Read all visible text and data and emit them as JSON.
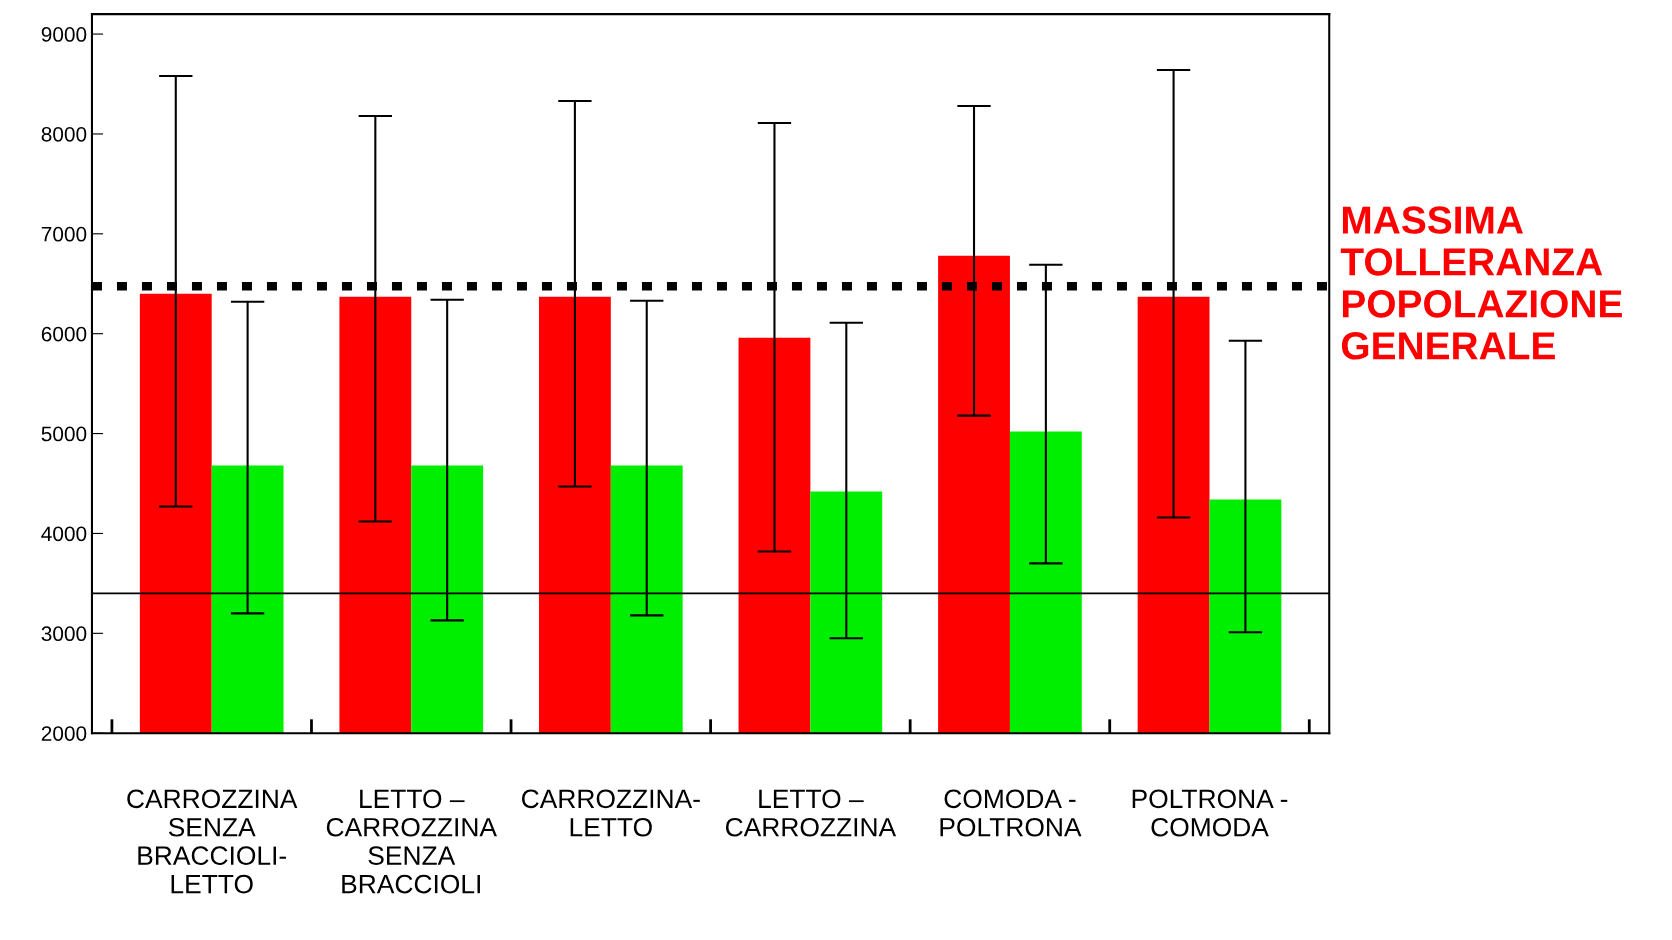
{
  "chart_data": {
    "type": "bar",
    "categories": [
      "CARROZZINA\nSENZA\nBRACCIOLI-\nLETTO",
      "LETTO –\nCARROZZINA\nSENZA\nBRACCIOLI",
      "CARROZZINA-\nLETTO",
      "LETTO –\nCARROZZINA",
      "COMODA -\nPOLTRONA",
      "POLTRONA -\nCOMODA"
    ],
    "series": [
      {
        "color": "#ff0000",
        "values": [
          6400,
          6370,
          6370,
          5960,
          6780,
          6370
        ],
        "errors": [
          [
            4270,
            8580
          ],
          [
            4120,
            8180
          ],
          [
            4470,
            8330
          ],
          [
            3820,
            8110
          ],
          [
            5180,
            8280
          ],
          [
            4160,
            8640
          ]
        ]
      },
      {
        "color": "#00ee00",
        "values": [
          4680,
          4680,
          4680,
          4420,
          5020,
          4340
        ],
        "errors": [
          [
            3200,
            6320
          ],
          [
            3130,
            6340
          ],
          [
            3180,
            6330
          ],
          [
            2950,
            6110
          ],
          [
            3700,
            6690
          ],
          [
            3010,
            5930
          ]
        ]
      }
    ],
    "ylim": [
      2000,
      9200
    ],
    "yticks": [
      2000,
      3000,
      4000,
      5000,
      6000,
      7000,
      8000,
      9000
    ],
    "grid": false,
    "legend": false,
    "ref_lines": [
      {
        "axis": "y",
        "value": 6475,
        "label": "MASSIMA\nTOLLERANZA\nPOPOLAZIONE\nGENERALE",
        "color": "#000000",
        "line_style": "dotted"
      },
      {
        "axis": "y",
        "value": 3400,
        "label": null,
        "color": "#000000",
        "line_style": "solid"
      }
    ]
  }
}
